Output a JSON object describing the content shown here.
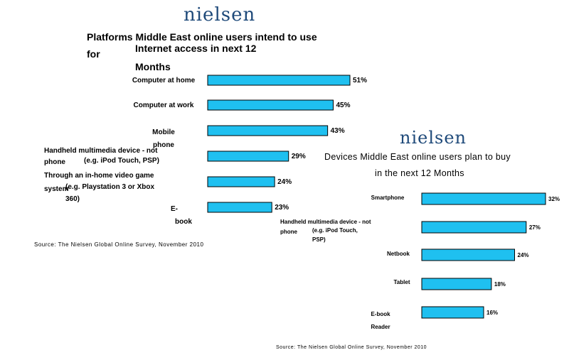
{
  "chart_data": [
    {
      "type": "bar",
      "orientation": "horizontal",
      "logo": "nielsen",
      "title": [
        "Platforms Middle East online users intend to use",
        "for",
        "Internet access in next 12",
        "Months"
      ],
      "categories": [
        {
          "lines": [
            "Computer at home"
          ]
        },
        {
          "lines": [
            "Computer at work"
          ]
        },
        {
          "lines": [
            "Mobile",
            "phone"
          ]
        },
        {
          "lines": [
            "Handheld multimedia device - not",
            "phone",
            "(e.g. iPod Touch, PSP)"
          ]
        },
        {
          "lines": [
            "Through an in-home video game",
            "system",
            "(e.g. Playstation 3 or Xbox",
            "360)"
          ]
        },
        {
          "lines": [
            "E-",
            "book"
          ]
        }
      ],
      "values": [
        51,
        45,
        43,
        29,
        24,
        23
      ],
      "value_labels": [
        "51%",
        "45%",
        "43%",
        "29%",
        "24%",
        "23%"
      ],
      "bar_color": "#1fc0f0",
      "source": "Source: The Nielsen Global Online Survey, November 2010"
    },
    {
      "type": "bar",
      "orientation": "horizontal",
      "logo": "nielsen",
      "title": [
        "Devices Middle East online users plan to buy",
        "in the next 12 Months"
      ],
      "categories": [
        {
          "lines": [
            "Smartphone"
          ]
        },
        {
          "lines": [
            "Handheld multimedia device - not",
            "phone",
            "(e.g. iPod Touch,",
            "PSP)"
          ]
        },
        {
          "lines": [
            "Netbook"
          ]
        },
        {
          "lines": [
            "Tablet"
          ]
        },
        {
          "lines": [
            "E-book",
            "Reader"
          ]
        }
      ],
      "values": [
        32,
        27,
        24,
        18,
        16
      ],
      "value_labels": [
        "32%",
        "27%",
        "24%",
        "18%",
        "16%"
      ],
      "bar_color": "#1fc0f0",
      "source": "Source: The Nielsen Global Online Survey, November 2010"
    }
  ]
}
